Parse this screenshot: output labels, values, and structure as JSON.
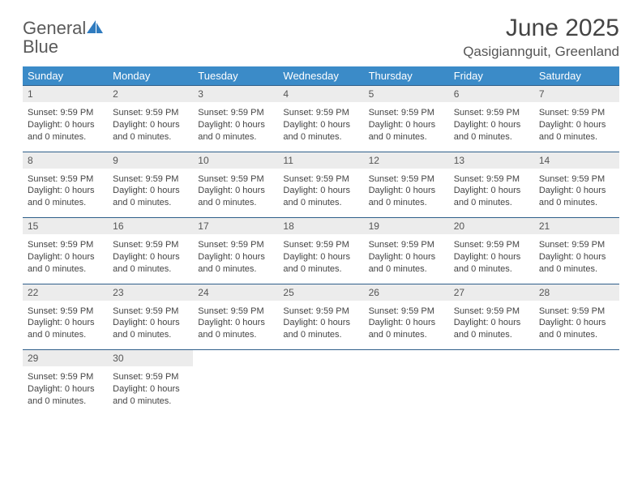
{
  "brand": {
    "word1": "General",
    "word2": "Blue",
    "word1_color": "#5a5a5a",
    "word2_color": "#2f7bbf",
    "icon_color": "#2f7bbf"
  },
  "title": "June 2025",
  "location": "Qasigiannguit, Greenland",
  "colors": {
    "header_bg": "#3b8bc8",
    "header_text": "#ffffff",
    "daynum_bg": "#ececec",
    "daynum_text": "#555555",
    "rule": "#2f5f8a",
    "body_text": "#444444",
    "page_bg": "#ffffff"
  },
  "fonts": {
    "title_size_pt": 22,
    "location_size_pt": 13,
    "dow_size_pt": 10,
    "daynum_size_pt": 9,
    "detail_size_pt": 8
  },
  "days_of_week": [
    "Sunday",
    "Monday",
    "Tuesday",
    "Wednesday",
    "Thursday",
    "Friday",
    "Saturday"
  ],
  "weeks": [
    {
      "nums": [
        "1",
        "2",
        "3",
        "4",
        "5",
        "6",
        "7"
      ],
      "cells": [
        {
          "sunset": "Sunset: 9:59 PM",
          "daylight": "Daylight: 0 hours and 0 minutes."
        },
        {
          "sunset": "Sunset: 9:59 PM",
          "daylight": "Daylight: 0 hours and 0 minutes."
        },
        {
          "sunset": "Sunset: 9:59 PM",
          "daylight": "Daylight: 0 hours and 0 minutes."
        },
        {
          "sunset": "Sunset: 9:59 PM",
          "daylight": "Daylight: 0 hours and 0 minutes."
        },
        {
          "sunset": "Sunset: 9:59 PM",
          "daylight": "Daylight: 0 hours and 0 minutes."
        },
        {
          "sunset": "Sunset: 9:59 PM",
          "daylight": "Daylight: 0 hours and 0 minutes."
        },
        {
          "sunset": "Sunset: 9:59 PM",
          "daylight": "Daylight: 0 hours and 0 minutes."
        }
      ]
    },
    {
      "nums": [
        "8",
        "9",
        "10",
        "11",
        "12",
        "13",
        "14"
      ],
      "cells": [
        {
          "sunset": "Sunset: 9:59 PM",
          "daylight": "Daylight: 0 hours and 0 minutes."
        },
        {
          "sunset": "Sunset: 9:59 PM",
          "daylight": "Daylight: 0 hours and 0 minutes."
        },
        {
          "sunset": "Sunset: 9:59 PM",
          "daylight": "Daylight: 0 hours and 0 minutes."
        },
        {
          "sunset": "Sunset: 9:59 PM",
          "daylight": "Daylight: 0 hours and 0 minutes."
        },
        {
          "sunset": "Sunset: 9:59 PM",
          "daylight": "Daylight: 0 hours and 0 minutes."
        },
        {
          "sunset": "Sunset: 9:59 PM",
          "daylight": "Daylight: 0 hours and 0 minutes."
        },
        {
          "sunset": "Sunset: 9:59 PM",
          "daylight": "Daylight: 0 hours and 0 minutes."
        }
      ]
    },
    {
      "nums": [
        "15",
        "16",
        "17",
        "18",
        "19",
        "20",
        "21"
      ],
      "cells": [
        {
          "sunset": "Sunset: 9:59 PM",
          "daylight": "Daylight: 0 hours and 0 minutes."
        },
        {
          "sunset": "Sunset: 9:59 PM",
          "daylight": "Daylight: 0 hours and 0 minutes."
        },
        {
          "sunset": "Sunset: 9:59 PM",
          "daylight": "Daylight: 0 hours and 0 minutes."
        },
        {
          "sunset": "Sunset: 9:59 PM",
          "daylight": "Daylight: 0 hours and 0 minutes."
        },
        {
          "sunset": "Sunset: 9:59 PM",
          "daylight": "Daylight: 0 hours and 0 minutes."
        },
        {
          "sunset": "Sunset: 9:59 PM",
          "daylight": "Daylight: 0 hours and 0 minutes."
        },
        {
          "sunset": "Sunset: 9:59 PM",
          "daylight": "Daylight: 0 hours and 0 minutes."
        }
      ]
    },
    {
      "nums": [
        "22",
        "23",
        "24",
        "25",
        "26",
        "27",
        "28"
      ],
      "cells": [
        {
          "sunset": "Sunset: 9:59 PM",
          "daylight": "Daylight: 0 hours and 0 minutes."
        },
        {
          "sunset": "Sunset: 9:59 PM",
          "daylight": "Daylight: 0 hours and 0 minutes."
        },
        {
          "sunset": "Sunset: 9:59 PM",
          "daylight": "Daylight: 0 hours and 0 minutes."
        },
        {
          "sunset": "Sunset: 9:59 PM",
          "daylight": "Daylight: 0 hours and 0 minutes."
        },
        {
          "sunset": "Sunset: 9:59 PM",
          "daylight": "Daylight: 0 hours and 0 minutes."
        },
        {
          "sunset": "Sunset: 9:59 PM",
          "daylight": "Daylight: 0 hours and 0 minutes."
        },
        {
          "sunset": "Sunset: 9:59 PM",
          "daylight": "Daylight: 0 hours and 0 minutes."
        }
      ]
    },
    {
      "nums": [
        "29",
        "30",
        "",
        "",
        "",
        "",
        ""
      ],
      "cells": [
        {
          "sunset": "Sunset: 9:59 PM",
          "daylight": "Daylight: 0 hours and 0 minutes."
        },
        {
          "sunset": "Sunset: 9:59 PM",
          "daylight": "Daylight: 0 hours and 0 minutes."
        },
        null,
        null,
        null,
        null,
        null
      ]
    }
  ]
}
